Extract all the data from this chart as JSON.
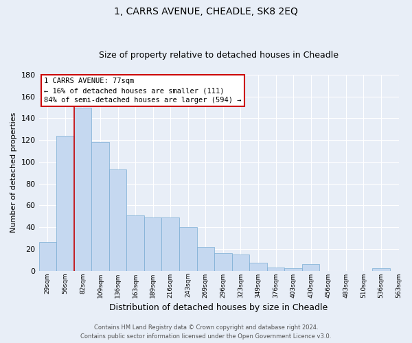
{
  "title": "1, CARRS AVENUE, CHEADLE, SK8 2EQ",
  "subtitle": "Size of property relative to detached houses in Cheadle",
  "xlabel": "Distribution of detached houses by size in Cheadle",
  "ylabel": "Number of detached properties",
  "bar_values": [
    26,
    124,
    150,
    118,
    93,
    51,
    49,
    49,
    40,
    22,
    16,
    15,
    7,
    3,
    2,
    6,
    0,
    0,
    0,
    2
  ],
  "bar_labels": [
    "29sqm",
    "56sqm",
    "82sqm",
    "109sqm",
    "136sqm",
    "163sqm",
    "189sqm",
    "216sqm",
    "243sqm",
    "269sqm",
    "296sqm",
    "323sqm",
    "349sqm",
    "376sqm",
    "403sqm",
    "430sqm",
    "456sqm",
    "483sqm",
    "510sqm",
    "536sqm",
    "563sqm"
  ],
  "bar_color_fill": "#c5d8f0",
  "bar_color_edge": "#7badd4",
  "highlight_color": "#cc0000",
  "highlight_bar_index": 2,
  "ylim": [
    0,
    180
  ],
  "yticks": [
    0,
    20,
    40,
    60,
    80,
    100,
    120,
    140,
    160,
    180
  ],
  "annotation_title": "1 CARRS AVENUE: 77sqm",
  "annotation_line1": "← 16% of detached houses are smaller (111)",
  "annotation_line2": "84% of semi-detached houses are larger (594) →",
  "annotation_box_facecolor": "#ffffff",
  "annotation_box_edgecolor": "#cc0000",
  "footer_line1": "Contains HM Land Registry data © Crown copyright and database right 2024.",
  "footer_line2": "Contains public sector information licensed under the Open Government Licence v3.0.",
  "bg_color": "#e8eef7",
  "plot_bg_color": "#e8eef7",
  "grid_color": "#ffffff",
  "title_fontsize": 10,
  "subtitle_fontsize": 9,
  "ylabel_fontsize": 8,
  "xlabel_fontsize": 9
}
